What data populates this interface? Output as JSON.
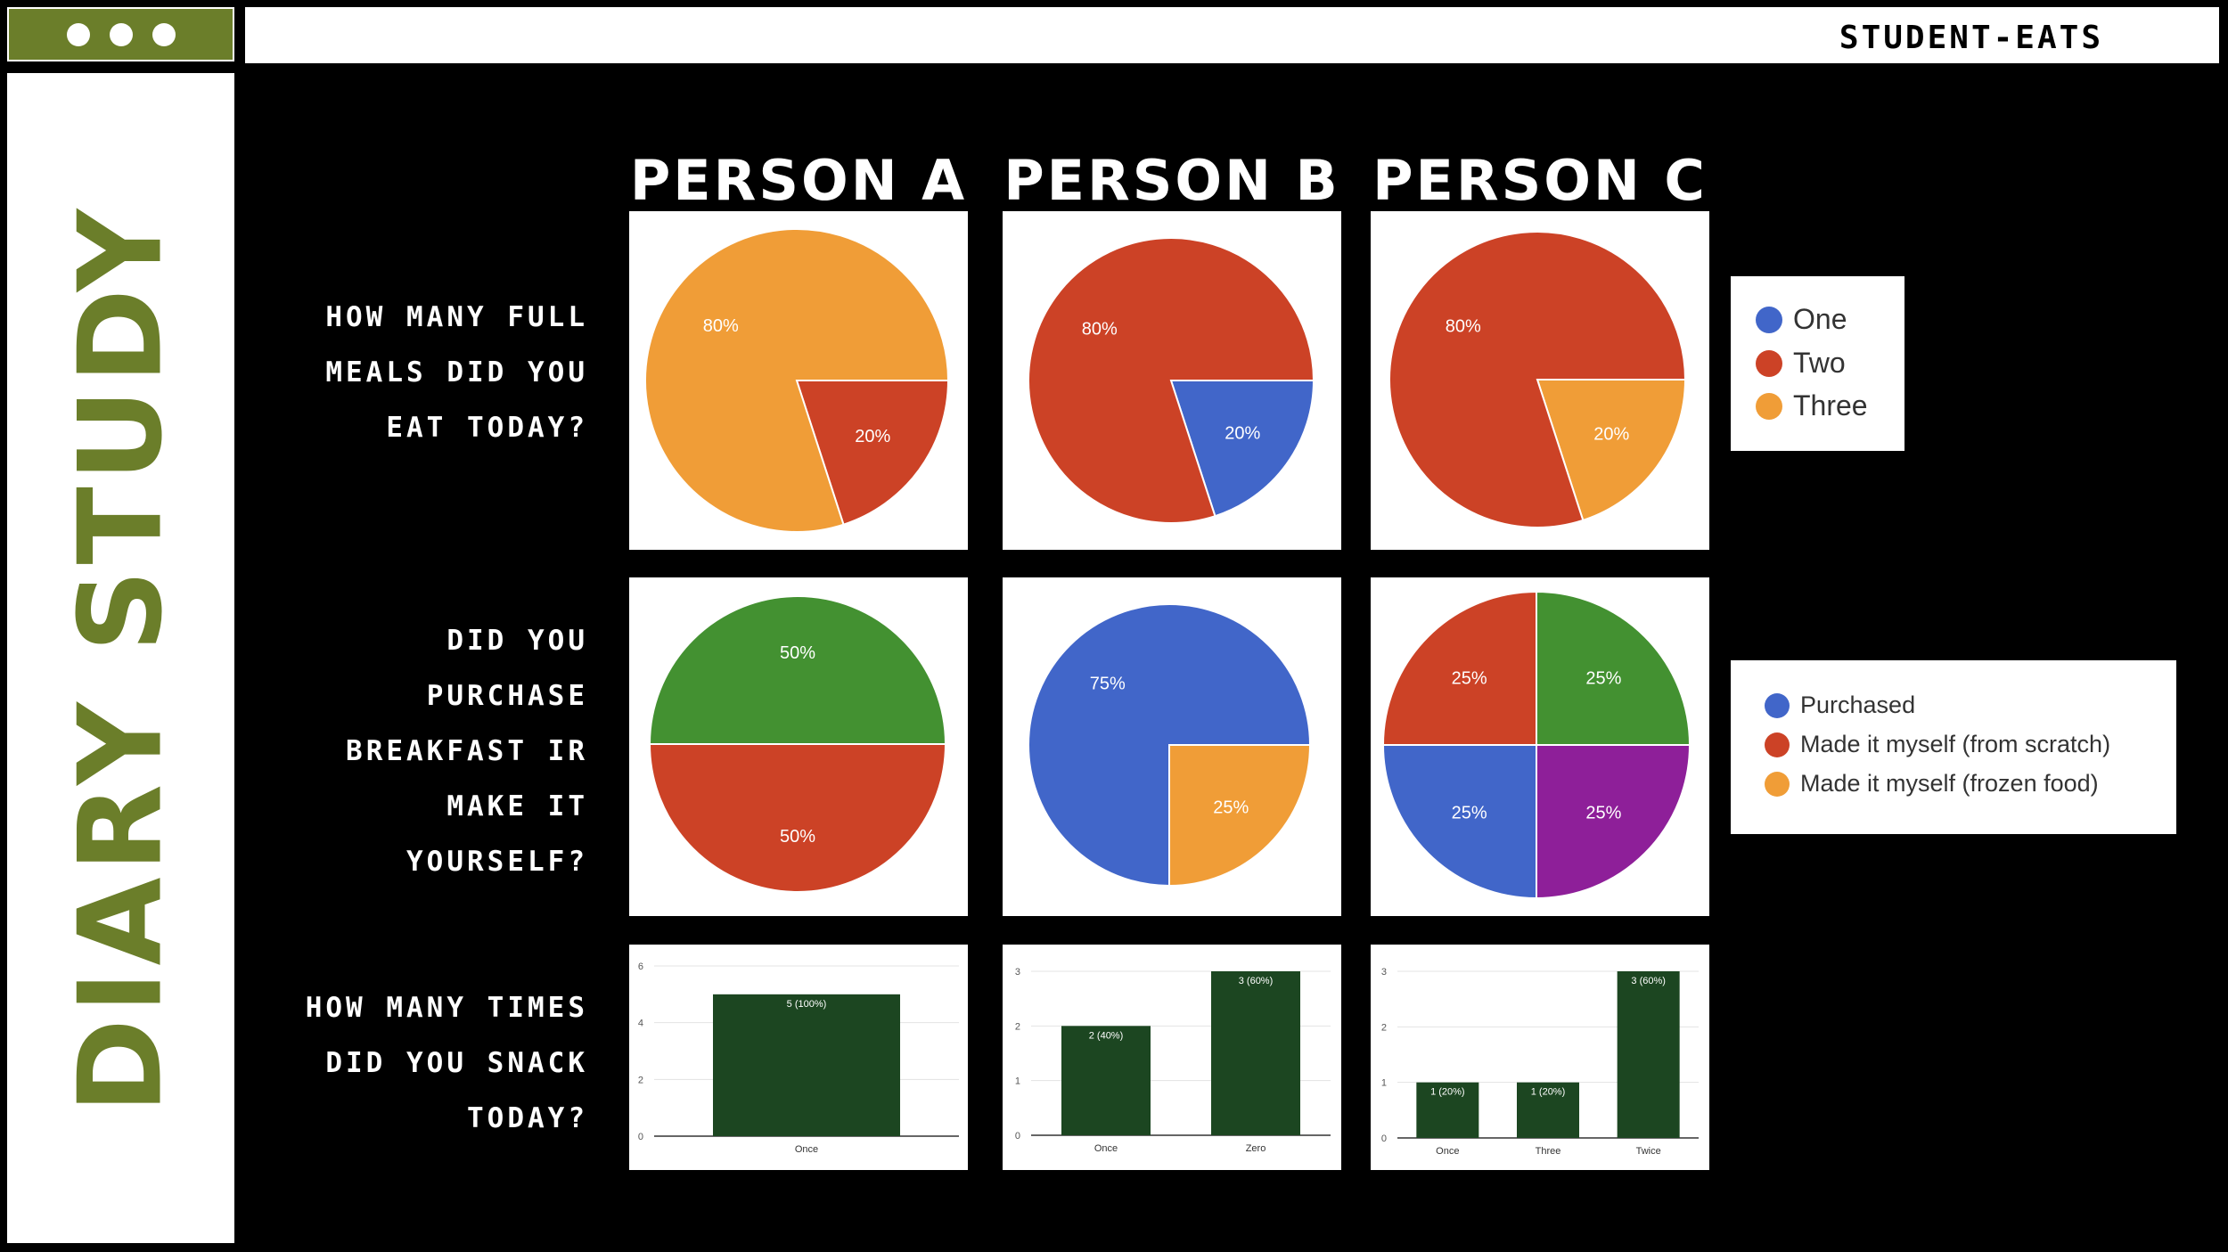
{
  "header": {
    "brand": "STUDENT-EATS"
  },
  "sidebar": {
    "title": "DIARY STUDY"
  },
  "columns": [
    "PERSON A",
    "PERSON B",
    "PERSON C"
  ],
  "questions": [
    "HOW MANY FULL\nMEALS DID YOU\nEAT TODAY?",
    "DID YOU\nPURCHASE\nBREAKFAST IR\nMAKE IT\nYOURSELF?",
    "HOW MANY TIMES\nDID YOU SNACK\nTODAY?"
  ],
  "colors": {
    "blue": "#4166c9",
    "red": "#cc4226",
    "orange": "#f09d37",
    "green": "#439131",
    "purple": "#8e1f99",
    "bar": "#1c4621",
    "accent": "#6b7e2a"
  },
  "legends": [
    {
      "items": [
        {
          "label": "One",
          "color": "#4166c9"
        },
        {
          "label": "Two",
          "color": "#cc4226"
        },
        {
          "label": "Three",
          "color": "#f09d37"
        }
      ]
    },
    {
      "items": [
        {
          "label": "Purchased",
          "color": "#4166c9"
        },
        {
          "label": "Made it myself (from scratch)",
          "color": "#cc4226"
        },
        {
          "label": "Made it myself (frozen food)",
          "color": "#f09d37"
        }
      ]
    }
  ],
  "chart_data": [
    {
      "id": "meals-a",
      "type": "pie",
      "slices": [
        {
          "value": 20,
          "label": "20%",
          "color": "#cc4226"
        },
        {
          "value": 80,
          "label": "80%",
          "color": "#f09d37"
        }
      ]
    },
    {
      "id": "meals-b",
      "type": "pie",
      "slices": [
        {
          "value": 20,
          "label": "20%",
          "color": "#4166c9"
        },
        {
          "value": 80,
          "label": "80%",
          "color": "#cc4226"
        }
      ]
    },
    {
      "id": "meals-c",
      "type": "pie",
      "slices": [
        {
          "value": 20,
          "label": "20%",
          "color": "#f09d37"
        },
        {
          "value": 80,
          "label": "80%",
          "color": "#cc4226"
        }
      ]
    },
    {
      "id": "breakfast-a",
      "type": "pie",
      "slices": [
        {
          "value": 50,
          "label": "50%",
          "color": "#cc4226"
        },
        {
          "value": 50,
          "label": "50%",
          "color": "#439131"
        }
      ]
    },
    {
      "id": "breakfast-b",
      "type": "pie",
      "slices": [
        {
          "value": 25,
          "label": "25%",
          "color": "#f09d37"
        },
        {
          "value": 75,
          "label": "75%",
          "color": "#4166c9"
        }
      ]
    },
    {
      "id": "breakfast-c",
      "type": "pie",
      "slices": [
        {
          "value": 25,
          "label": "25%",
          "color": "#8e1f99"
        },
        {
          "value": 25,
          "label": "25%",
          "color": "#4166c9"
        },
        {
          "value": 25,
          "label": "25%",
          "color": "#cc4226"
        },
        {
          "value": 25,
          "label": "25%",
          "color": "#439131"
        }
      ]
    },
    {
      "id": "snack-a",
      "type": "bar",
      "categories": [
        "Once"
      ],
      "values": [
        5
      ],
      "labels": [
        "5 (100%)"
      ],
      "ylim": [
        0,
        6
      ],
      "yticks": [
        0,
        2,
        4,
        6
      ]
    },
    {
      "id": "snack-b",
      "type": "bar",
      "categories": [
        "Once",
        "Zero"
      ],
      "values": [
        2,
        3
      ],
      "labels": [
        "2 (40%)",
        "3 (60%)"
      ],
      "ylim": [
        0,
        3
      ],
      "yticks": [
        0,
        1,
        2,
        3
      ]
    },
    {
      "id": "snack-c",
      "type": "bar",
      "categories": [
        "Once",
        "Three",
        "Twice"
      ],
      "values": [
        1,
        1,
        3
      ],
      "labels": [
        "1 (20%)",
        "1 (20%)",
        "3 (60%)"
      ],
      "ylim": [
        0,
        3
      ],
      "yticks": [
        0,
        1,
        2,
        3
      ]
    }
  ]
}
